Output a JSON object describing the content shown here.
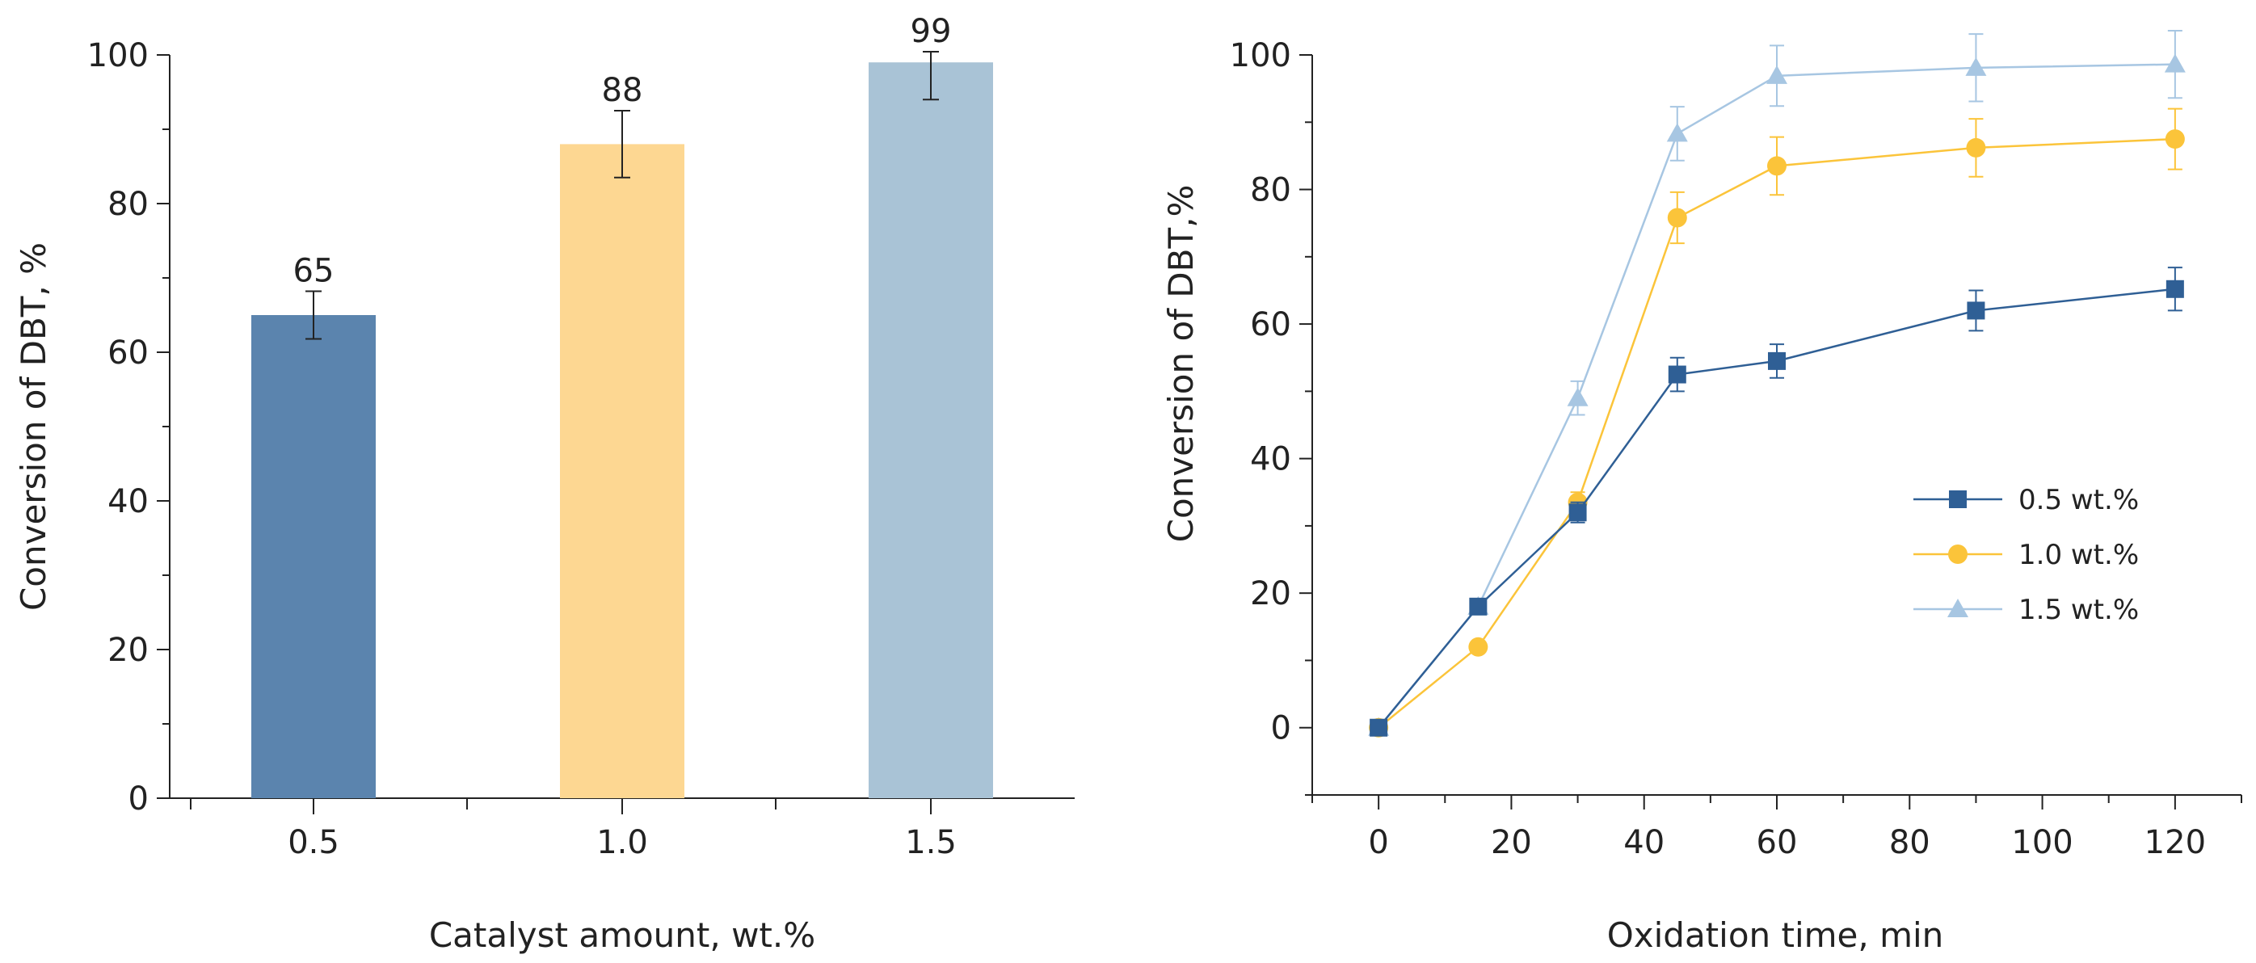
{
  "chart_data": [
    {
      "type": "bar",
      "categories": [
        "0.5",
        "1.0",
        "1.5"
      ],
      "values": [
        65,
        88,
        99
      ],
      "errors": [
        3.2,
        4.5,
        5
      ],
      "data_labels": [
        "65",
        "88",
        "99"
      ],
      "colors": [
        "#5b84ae",
        "#fdd792",
        "#a9c3d6"
      ],
      "xlabel": "Catalyst amount, wt.%",
      "ylabel": "Conversion of DBT, %",
      "ylim": [
        0,
        100
      ],
      "yticks": [
        "0",
        "20",
        "40",
        "60",
        "80",
        "100"
      ],
      "grid": false
    },
    {
      "type": "line",
      "x": [
        0,
        15,
        30,
        45,
        60,
        90,
        120
      ],
      "xlabel": "Oxidation time, min",
      "ylabel": "Conversion of DBT,%",
      "xlim": [
        -10,
        130
      ],
      "ylim": [
        -10,
        100
      ],
      "xticks": [
        "0",
        "20",
        "40",
        "60",
        "80",
        "100",
        "120"
      ],
      "yticks": [
        "0",
        "20",
        "40",
        "60",
        "80",
        "100"
      ],
      "legend_position": "center-right",
      "grid": false,
      "series": [
        {
          "name": "0.5 wt.%",
          "marker": "square",
          "color": "#2f5f95",
          "values": [
            0,
            18,
            32,
            52.5,
            54.5,
            62,
            65.2
          ],
          "errors": [
            0.5,
            1,
            1.5,
            2.5,
            2.5,
            3,
            3.2
          ]
        },
        {
          "name": "1.0 wt.%",
          "marker": "circle",
          "color": "#fbc43a",
          "values": [
            0,
            12,
            33.5,
            75.8,
            83.5,
            86.2,
            87.5
          ],
          "errors": [
            0.5,
            0.5,
            1.5,
            3.8,
            4.3,
            4.3,
            4.5
          ]
        },
        {
          "name": "1.5 wt.%",
          "marker": "triangle",
          "color": "#a7c6e2",
          "values": [
            0,
            18,
            49,
            88.3,
            96.9,
            98.1,
            98.6
          ],
          "errors": [
            0.5,
            1,
            2.5,
            4,
            4.5,
            5,
            5
          ]
        }
      ]
    }
  ]
}
